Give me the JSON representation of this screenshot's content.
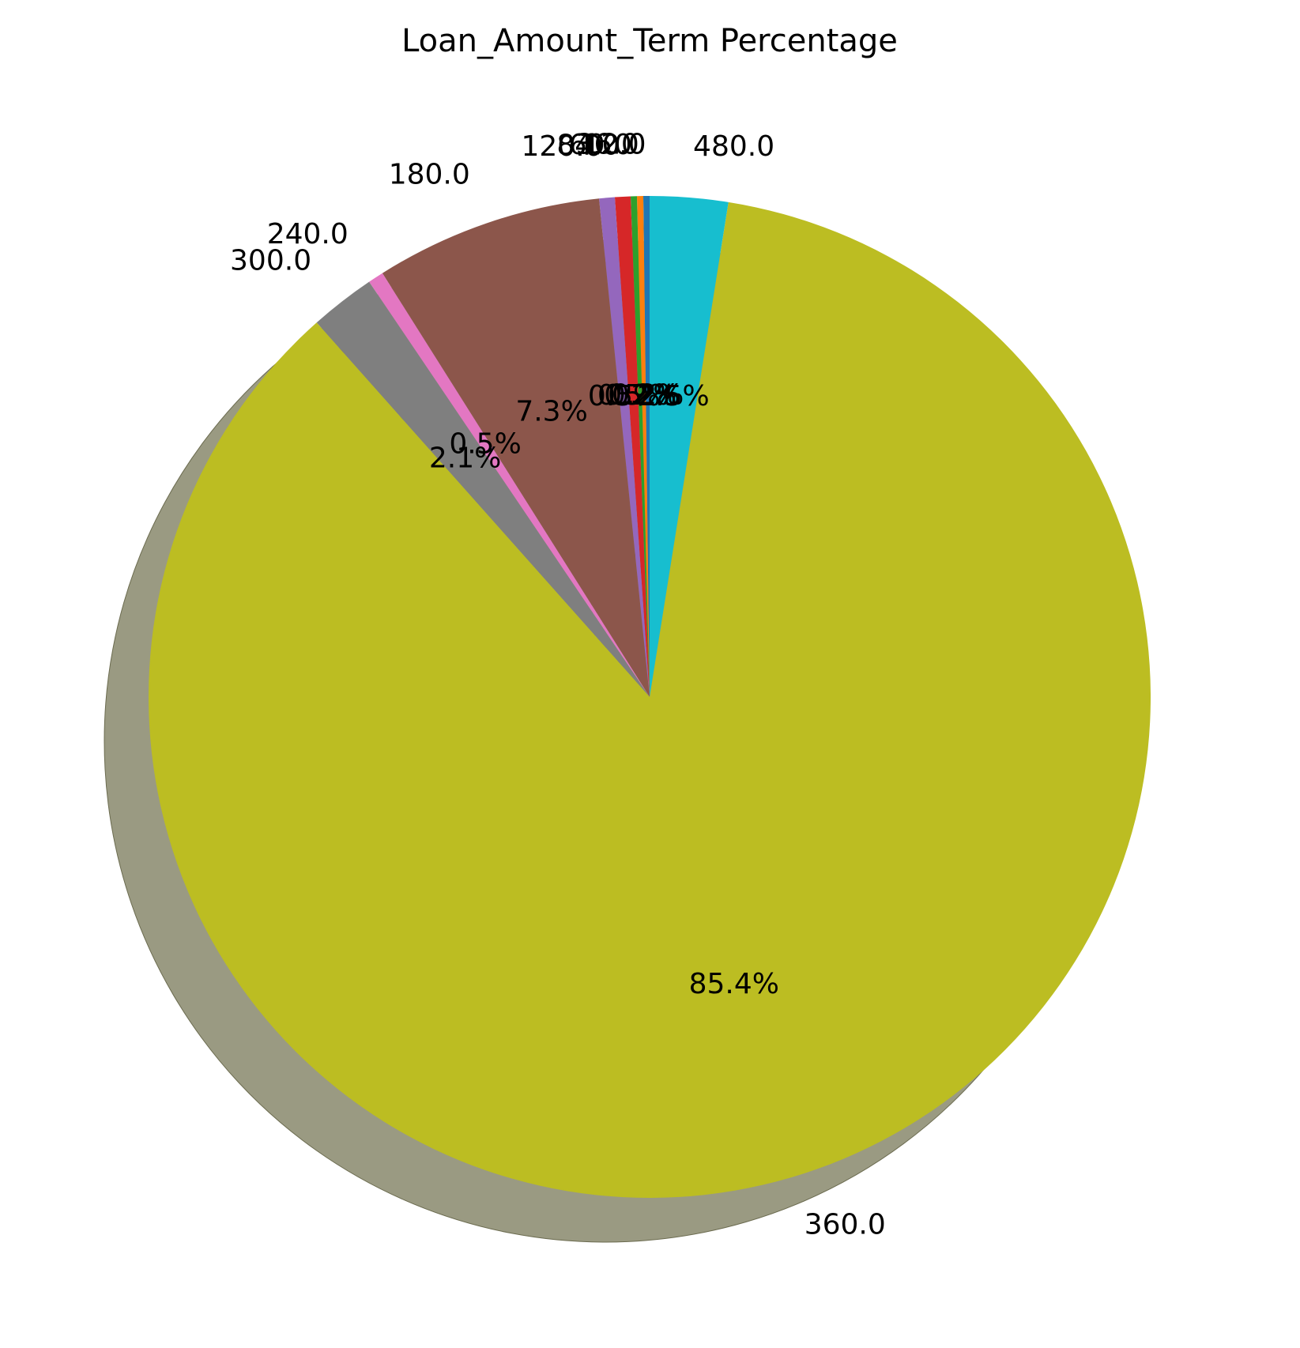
{
  "chart_data": {
    "type": "pie",
    "title": "Loan_Amount_Term Percentage",
    "categories": [
      "12.0",
      "36.0",
      "60.0",
      "84.0",
      "120.0",
      "180.0",
      "240.0",
      "300.0",
      "360.0",
      "480.0"
    ],
    "values": [
      0.2,
      0.2,
      0.2,
      0.5,
      0.5,
      7.3,
      0.5,
      2.1,
      85.4,
      2.5
    ],
    "value_labels": [
      "0.2%",
      "0.2%",
      "0.2%",
      "0.5%",
      "0.5%",
      "7.3%",
      "0.5%",
      "2.1%",
      "85.4%",
      "2.5%"
    ],
    "colors": [
      "#1f77b4",
      "#ff7f0e",
      "#2ca02c",
      "#d62728",
      "#9467bd",
      "#8c564b",
      "#e377c2",
      "#7f7f7f",
      "#bcbd22",
      "#17becf"
    ],
    "start_angle_deg": 90,
    "direction": "counterclockwise",
    "shadow": true,
    "legend": "none"
  }
}
